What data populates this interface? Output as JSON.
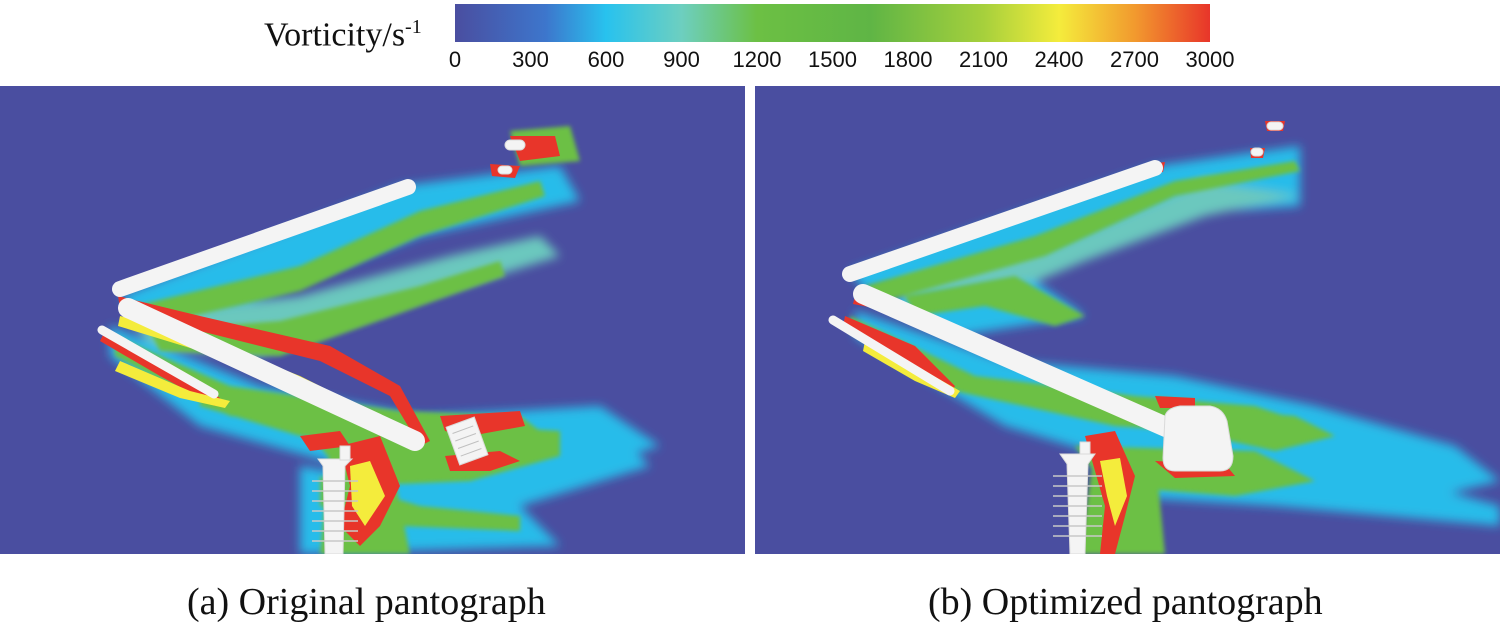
{
  "colorbar": {
    "label": "Vorticity/s",
    "label_exponent": "-1",
    "ticks": [
      "0",
      "300",
      "600",
      "900",
      "1200",
      "1500",
      "1800",
      "2100",
      "2400",
      "2700",
      "3000"
    ],
    "range": [
      0,
      3000
    ],
    "colors": [
      "#4a4ea0",
      "#3aa6e8",
      "#28c2ee",
      "#6dcfc0",
      "#6cc044",
      "#5fb545",
      "#a6d03c",
      "#f4ec3c",
      "#f29a2e",
      "#e8352a"
    ]
  },
  "panels": {
    "a": {
      "caption": "(a) Original pantograph"
    },
    "b": {
      "caption": "(b) Optimized pantograph"
    }
  },
  "colors": {
    "background": "#4a4ea0",
    "body": "#f4f4f4",
    "high": "#e8352a",
    "mid": "#f4ec3c",
    "low": "#6cc044",
    "cyan": "#28c2ee"
  }
}
